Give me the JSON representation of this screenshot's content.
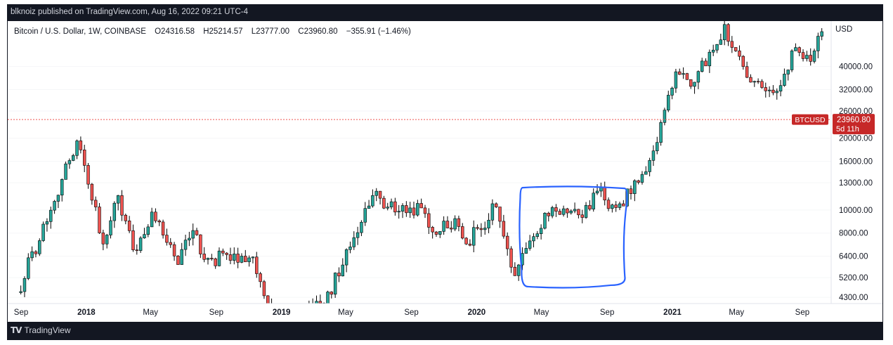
{
  "header": {
    "published": "blknoiz published on TradingView.com, Aug 16, 2022 09:21 UTC-4"
  },
  "footer": {
    "brand": "TradingView",
    "logo": "tv-logo-icon"
  },
  "legend": {
    "symbol": "Bitcoin / U.S. Dollar, 1W, COINBASE",
    "open": "O24316.58",
    "high": "H25214.57",
    "low": "L23777.00",
    "close": "C23960.80",
    "change": "−355.91 (−1.46%)"
  },
  "price_tag": {
    "label": "BTCUSD",
    "price": "23960.80",
    "countdown": "5d 11h",
    "color": "#c62828"
  },
  "colors": {
    "up": "#26a69a",
    "down": "#ef5350",
    "annotation": "#2962ff",
    "current_line": "#ef5350"
  },
  "chart_data": {
    "type": "candlestick",
    "interval": "1W",
    "scale": "log",
    "currency": "USD",
    "y_tick_labels": [
      "40000.00",
      "32000.00",
      "26000.00",
      "20000.00",
      "16000.00",
      "13000.00",
      "10000.00",
      "8000.00",
      "6400.00",
      "5200.00",
      "4300.00"
    ],
    "y_ticks": [
      40000,
      32000,
      26000,
      20000,
      16000,
      13000,
      10000,
      8000,
      6400,
      5200,
      4300
    ],
    "ylim": [
      4050,
      62000
    ],
    "x_tick_labels": [
      "Sep",
      "2018",
      "May",
      "Sep",
      "2019",
      "May",
      "Sep",
      "2020",
      "May",
      "Sep",
      "2021",
      "May",
      "Sep"
    ],
    "current_price": 23960.8,
    "annotation": {
      "type": "box",
      "start": "2020-03-16",
      "end": "2020-10-12",
      "low": 4900,
      "high": 12400
    },
    "series": [
      {
        "from": "2017-08-28",
        "to": "2017-12-18",
        "o": 4500,
        "c": 19500
      },
      {
        "from": "2017-12-18",
        "to": "2018-02-05",
        "o": 19500,
        "c": 7200
      },
      {
        "from": "2018-02-05",
        "to": "2018-03-05",
        "o": 7200,
        "c": 11500
      },
      {
        "from": "2018-03-05",
        "to": "2018-04-02",
        "o": 11500,
        "c": 6800
      },
      {
        "from": "2018-04-02",
        "to": "2018-05-07",
        "o": 6800,
        "c": 9800
      },
      {
        "from": "2018-05-07",
        "to": "2018-06-25",
        "o": 9800,
        "c": 5900
      },
      {
        "from": "2018-06-25",
        "to": "2018-07-23",
        "o": 5900,
        "c": 8200
      },
      {
        "from": "2018-07-23",
        "to": "2018-08-13",
        "o": 8200,
        "c": 6200
      },
      {
        "from": "2018-08-13",
        "to": "2018-11-12",
        "o": 6200,
        "c": 6350
      },
      {
        "from": "2018-11-12",
        "to": "2018-12-17",
        "o": 6350,
        "c": 3300
      },
      {
        "from": "2018-12-17",
        "to": "2019-03-25",
        "o": 3300,
        "c": 4000
      },
      {
        "from": "2019-03-25",
        "to": "2019-06-24",
        "o": 4000,
        "c": 11500
      },
      {
        "from": "2019-06-24",
        "to": "2019-08-05",
        "o": 11500,
        "c": 9800
      },
      {
        "from": "2019-08-05",
        "to": "2019-09-23",
        "o": 9800,
        "c": 10200
      },
      {
        "from": "2019-09-23",
        "to": "2019-10-21",
        "o": 10200,
        "c": 7900
      },
      {
        "from": "2019-10-21",
        "to": "2019-11-25",
        "o": 7900,
        "c": 9200
      },
      {
        "from": "2019-11-25",
        "to": "2019-12-16",
        "o": 9200,
        "c": 7200
      },
      {
        "from": "2019-12-16",
        "to": "2020-02-10",
        "o": 7200,
        "c": 10300
      },
      {
        "from": "2020-02-10",
        "to": "2020-03-16",
        "o": 10300,
        "c": 5300
      },
      {
        "from": "2020-03-16",
        "to": "2020-05-11",
        "o": 5300,
        "c": 9700
      },
      {
        "from": "2020-05-11",
        "to": "2020-07-20",
        "o": 9700,
        "c": 9300
      },
      {
        "from": "2020-07-20",
        "to": "2020-08-17",
        "o": 9300,
        "c": 12000
      },
      {
        "from": "2020-08-17",
        "to": "2020-09-14",
        "o": 12000,
        "c": 10500
      },
      {
        "from": "2020-09-14",
        "to": "2020-10-19",
        "o": 10500,
        "c": 11700
      },
      {
        "from": "2020-10-19",
        "to": "2020-12-07",
        "o": 11700,
        "c": 19200
      },
      {
        "from": "2020-12-07",
        "to": "2021-01-11",
        "o": 19200,
        "c": 38000
      },
      {
        "from": "2021-01-11",
        "to": "2021-02-08",
        "o": 38000,
        "c": 33000
      },
      {
        "from": "2021-02-08",
        "to": "2021-04-12",
        "o": 33000,
        "c": 60000
      },
      {
        "from": "2021-04-12",
        "to": "2021-05-24",
        "o": 60000,
        "c": 36000
      },
      {
        "from": "2021-05-24",
        "to": "2021-07-19",
        "o": 36000,
        "c": 31500
      },
      {
        "from": "2021-07-19",
        "to": "2021-08-23",
        "o": 31500,
        "c": 48000
      },
      {
        "from": "2021-08-23",
        "to": "2021-09-20",
        "o": 48000,
        "c": 42000
      },
      {
        "from": "2021-09-20",
        "to": "2021-10-11",
        "o": 42000,
        "c": 56000
      }
    ]
  }
}
